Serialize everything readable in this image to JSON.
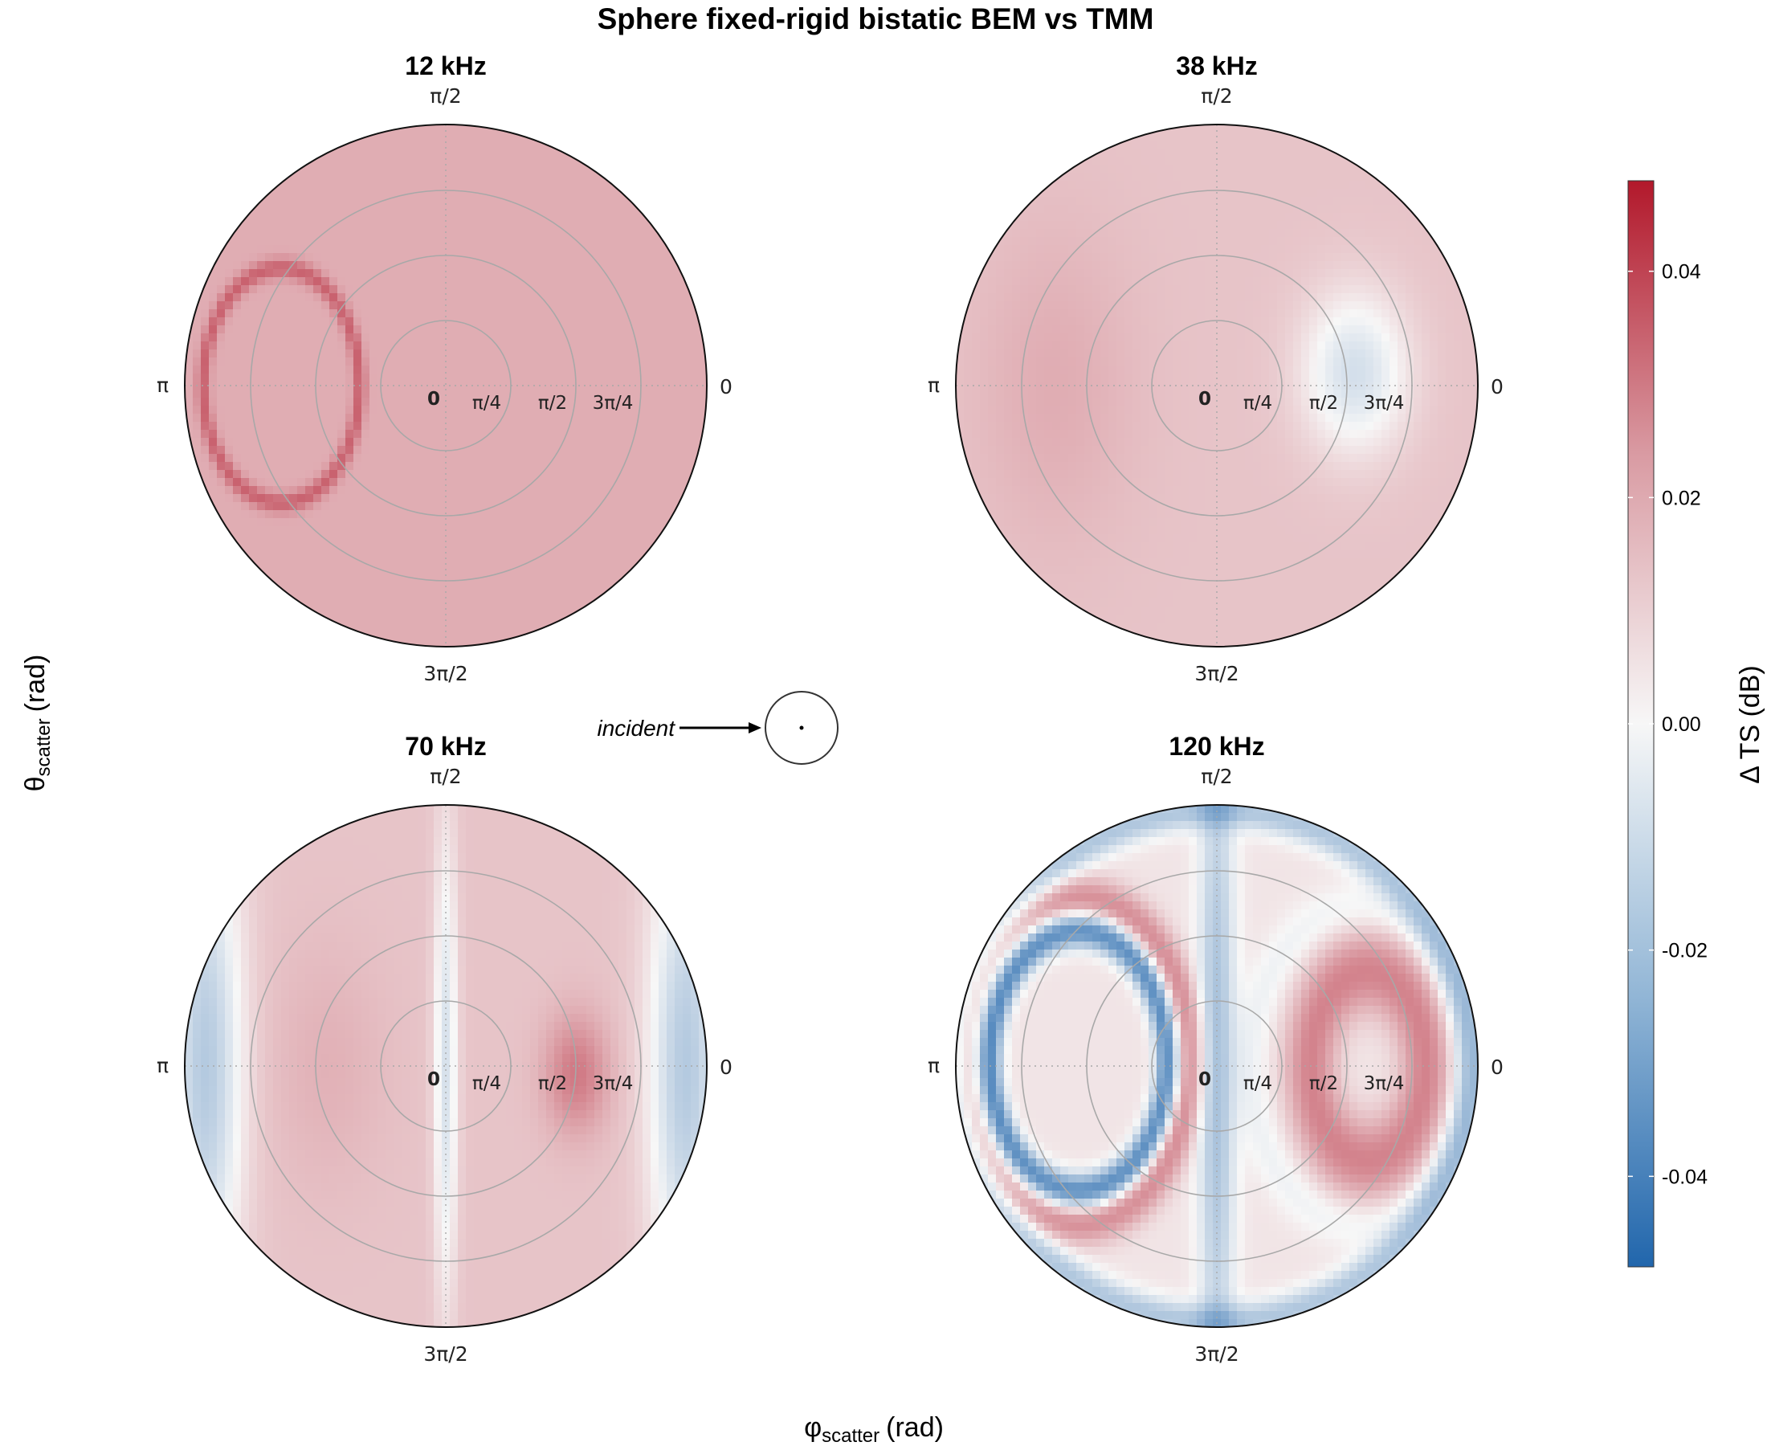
{
  "chart_data": {
    "type": "heatmap",
    "subtype": "polar-grid",
    "title": "Sphere fixed-rigid bistatic BEM vs TMM",
    "xlabel": {
      "symbol": "φ",
      "sub": "scatter",
      "unit": "(rad)"
    },
    "ylabel": {
      "symbol": "θ",
      "sub": "scatter",
      "unit": "(rad)"
    },
    "angular_ticks": {
      "top": "π/2",
      "left": "π",
      "right": "0",
      "bottom": "3π/2"
    },
    "radial_ticks": [
      "0",
      "π/4",
      "π/2",
      "3π/4"
    ],
    "colorbar": {
      "title": "Δ TS (dB)",
      "range": [
        -0.048,
        0.048
      ],
      "ticks": [
        0.04,
        0.02,
        0.0,
        -0.02,
        -0.04
      ],
      "tick_labels": [
        "0.04",
        "0.02",
        "0.00",
        "-0.02",
        "-0.04"
      ],
      "colormap": [
        "#2166ac",
        "#f7f7f7",
        "#b2182b"
      ]
    },
    "incident_label": "incident",
    "panels": [
      {
        "title": "12 kHz",
        "base": 0.016,
        "features": [
          {
            "type": "ring",
            "cx": -0.63,
            "cy": 0.0,
            "rx": 0.3,
            "ry": 0.45,
            "w": 0.025,
            "amp": 0.016
          }
        ]
      },
      {
        "title": "38 kHz",
        "base": 0.011,
        "features": [
          {
            "type": "blob",
            "cx": 0.53,
            "cy": 0.05,
            "sx": 0.2,
            "sy": 0.3,
            "amp": -0.019
          },
          {
            "type": "blob",
            "cx": -0.62,
            "cy": 0.0,
            "sx": 0.3,
            "sy": 0.6,
            "amp": 0.005
          }
        ]
      },
      {
        "title": "70 kHz",
        "base": 0.011,
        "features": [
          {
            "type": "blob",
            "cx": 0.92,
            "cy": 0.0,
            "sx": 0.14,
            "sy": 0.9,
            "amp": -0.026
          },
          {
            "type": "blob",
            "cx": -0.92,
            "cy": 0.0,
            "sx": 0.14,
            "sy": 0.9,
            "amp": -0.026
          },
          {
            "type": "blob",
            "cx": 0.0,
            "cy": 0.0,
            "sx": 0.045,
            "sy": 0.9,
            "amp": -0.018
          },
          {
            "type": "blob",
            "cx": 0.5,
            "cy": -0.03,
            "sx": 0.12,
            "sy": 0.22,
            "amp": 0.016
          },
          {
            "type": "blob",
            "cx": -0.45,
            "cy": 0.0,
            "sx": 0.22,
            "sy": 0.45,
            "amp": 0.004
          }
        ]
      },
      {
        "title": "120 kHz",
        "base": 0.004,
        "features": [
          {
            "type": "blob",
            "cx": 0.0,
            "cy": 0.0,
            "sx": 0.07,
            "sy": 1.4,
            "amp": -0.022
          },
          {
            "type": "ring",
            "cx": 0.0,
            "cy": 0.0,
            "rx": 0.98,
            "ry": 0.98,
            "w": 0.07,
            "amp": -0.02
          },
          {
            "type": "ring",
            "cx": -0.53,
            "cy": 0.02,
            "rx": 0.34,
            "ry": 0.5,
            "w": 0.045,
            "amp": -0.04
          },
          {
            "type": "ring",
            "cx": -0.53,
            "cy": 0.02,
            "rx": 0.43,
            "ry": 0.62,
            "w": 0.06,
            "amp": 0.019
          },
          {
            "type": "ring",
            "cx": 0.58,
            "cy": 0.0,
            "rx": 0.22,
            "ry": 0.36,
            "w": 0.1,
            "amp": 0.021
          },
          {
            "type": "ring",
            "cx": 0.55,
            "cy": 0.0,
            "rx": 0.42,
            "ry": 0.6,
            "w": 0.07,
            "amp": -0.006
          }
        ]
      }
    ]
  }
}
